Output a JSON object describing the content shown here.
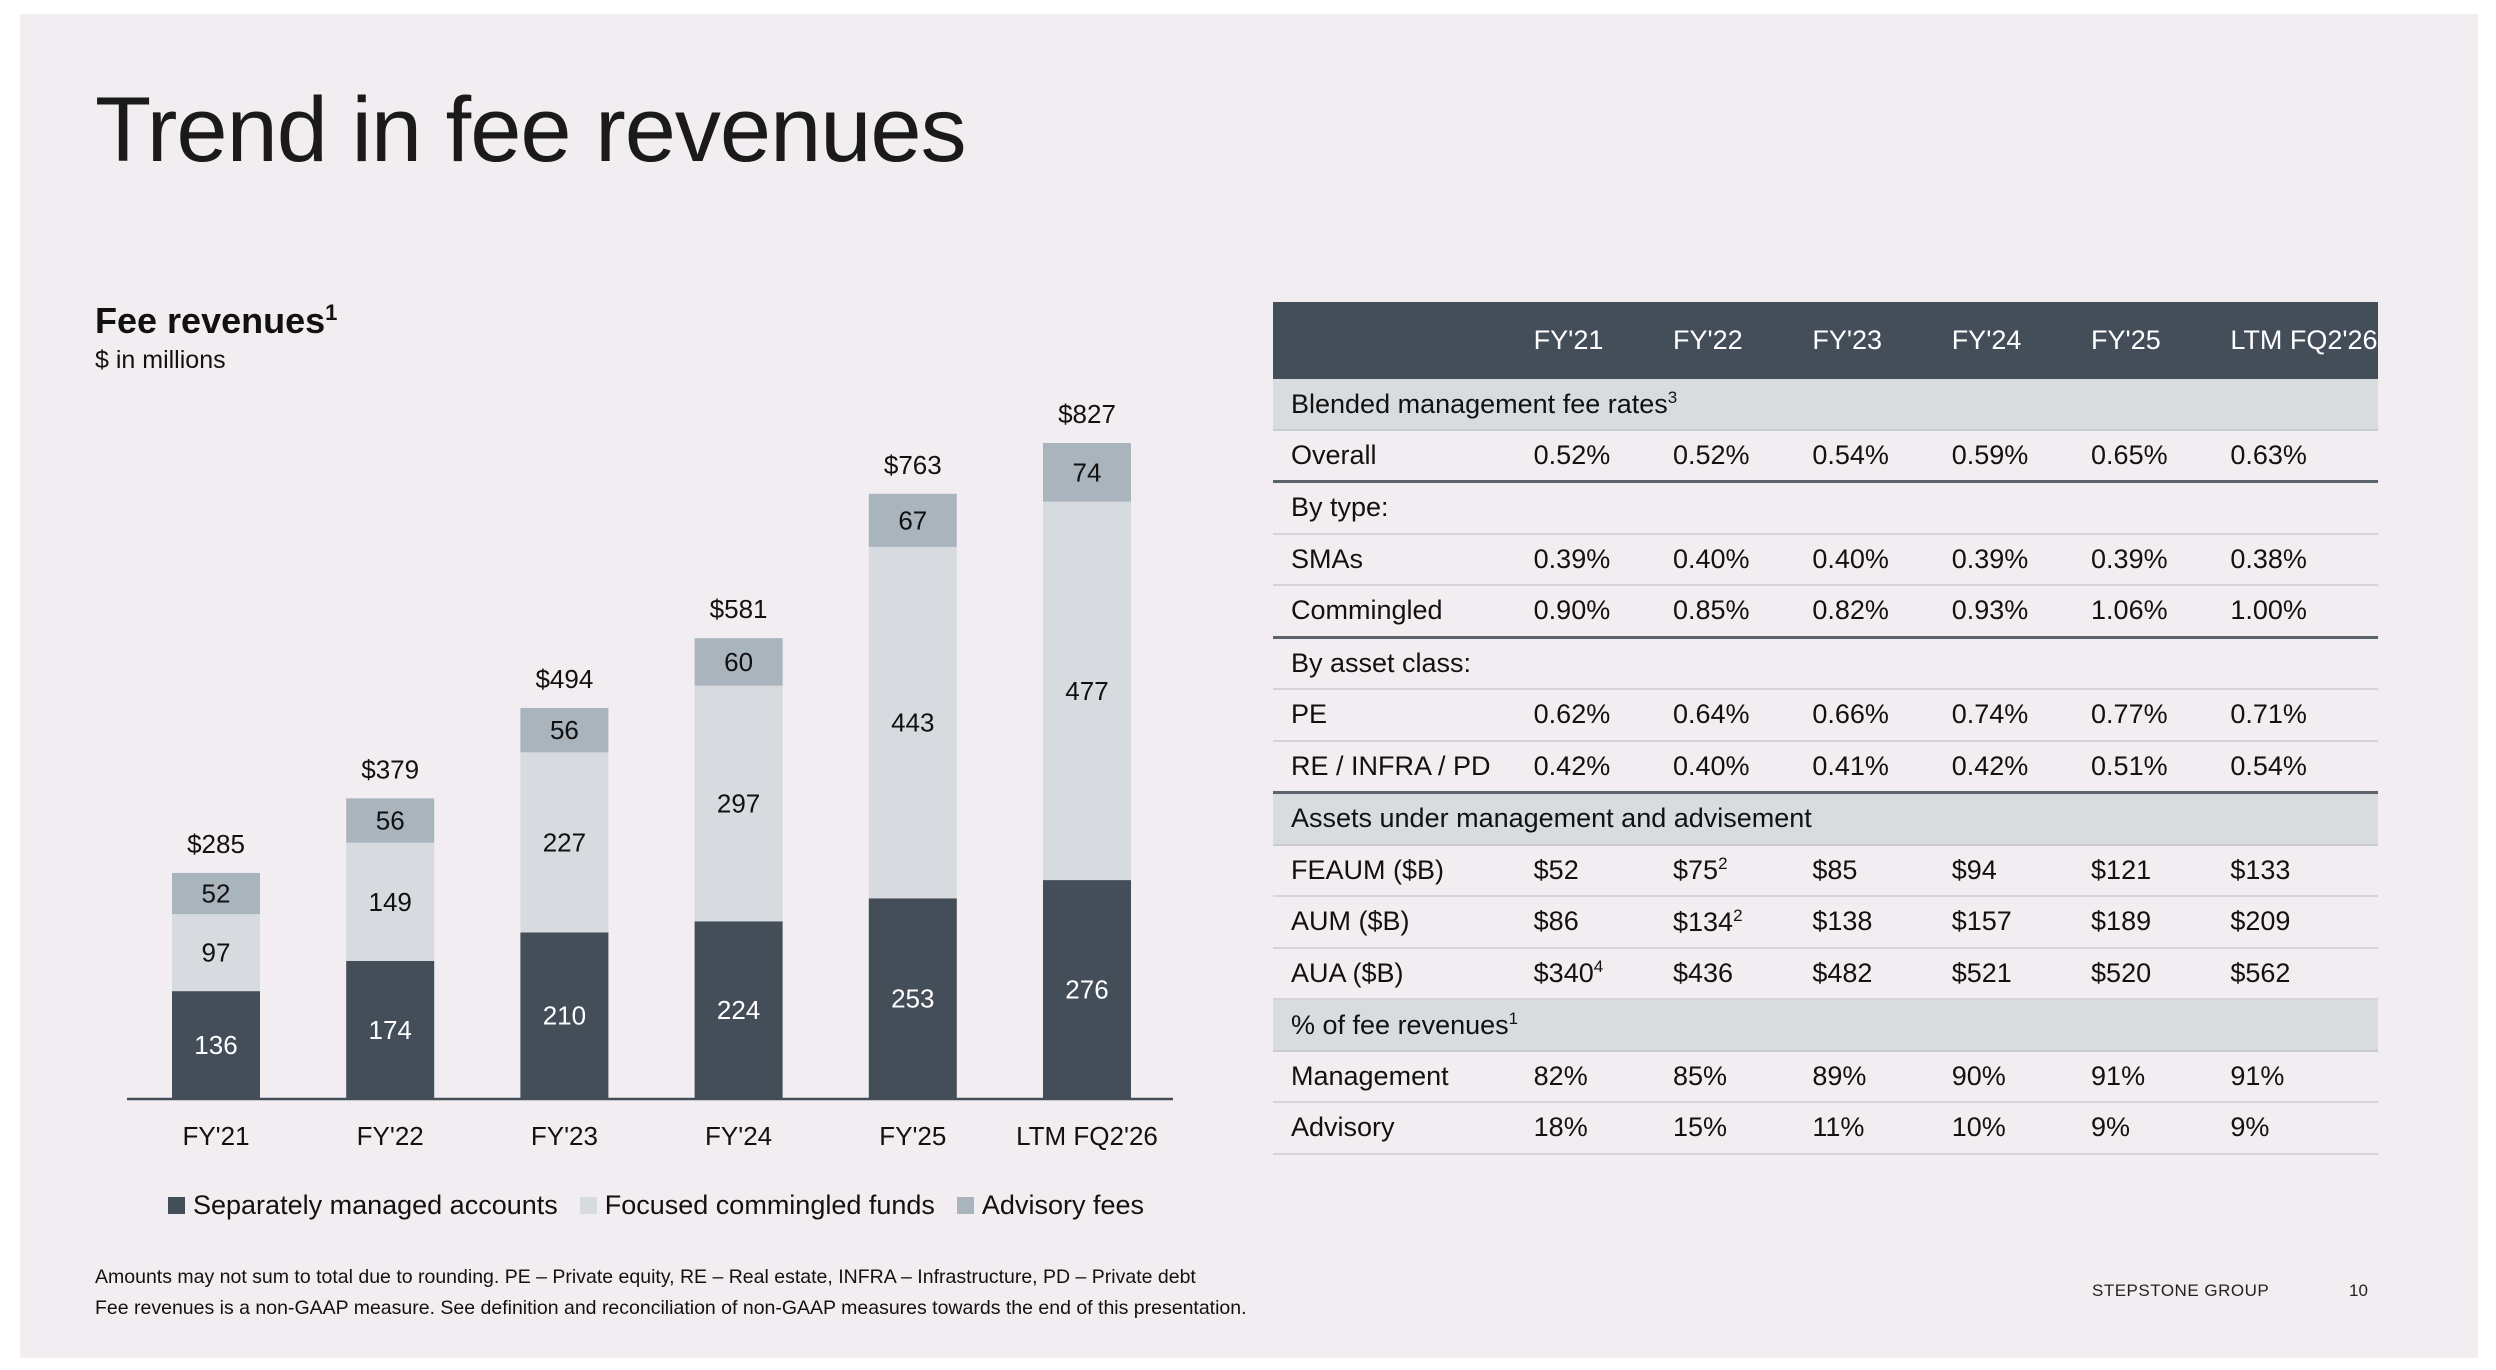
{
  "title": "Trend in fee revenues",
  "chart": {
    "heading": "Fee revenues",
    "heading_sup": "1",
    "subtitle": "$ in millions"
  },
  "chart_data": {
    "type": "bar",
    "stacked": true,
    "categories": [
      "FY'21",
      "FY'22",
      "FY'23",
      "FY'24",
      "FY'25",
      "LTM FQ2'26"
    ],
    "series": [
      {
        "name": "Separately managed accounts",
        "values": [
          136,
          174,
          210,
          224,
          253,
          276
        ],
        "color": "#434e59",
        "label_color": "#ffffff"
      },
      {
        "name": "Focused commingled funds",
        "values": [
          97,
          149,
          227,
          297,
          443,
          477
        ],
        "color": "#d7dbdf",
        "label_color": "#111111"
      },
      {
        "name": "Advisory fees",
        "values": [
          52,
          56,
          56,
          60,
          67,
          74
        ],
        "color": "#aab4bd",
        "label_color": "#111111"
      }
    ],
    "totals": [
      "$285",
      "$379",
      "$494",
      "$581",
      "$763",
      "$827"
    ],
    "ylim": [
      0,
      827
    ],
    "title": "Fee revenues",
    "ylabel": "$ in millions",
    "xlabel": "",
    "legend_position": "bottom"
  },
  "table": {
    "headers": [
      "",
      "FY'21",
      "FY'22",
      "FY'23",
      "FY'24",
      "FY'25",
      "LTM FQ2'26"
    ],
    "rows": [
      {
        "kind": "section",
        "label": "Blended management fee rates",
        "sup": "3"
      },
      {
        "kind": "data",
        "label": "Overall",
        "cells": [
          "0.52%",
          "0.52%",
          "0.54%",
          "0.59%",
          "0.65%",
          "0.63%"
        ],
        "rule": true
      },
      {
        "kind": "plain-section",
        "label": "By type:"
      },
      {
        "kind": "data",
        "label": "SMAs",
        "cells": [
          "0.39%",
          "0.40%",
          "0.40%",
          "0.39%",
          "0.39%",
          "0.38%"
        ]
      },
      {
        "kind": "data",
        "label": "Commingled",
        "cells": [
          "0.90%",
          "0.85%",
          "0.82%",
          "0.93%",
          "1.06%",
          "1.00%"
        ],
        "rule": true
      },
      {
        "kind": "plain-section",
        "label": "By asset class:"
      },
      {
        "kind": "data",
        "label": "PE",
        "cells": [
          "0.62%",
          "0.64%",
          "0.66%",
          "0.74%",
          "0.77%",
          "0.71%"
        ]
      },
      {
        "kind": "data",
        "label": "RE / INFRA / PD",
        "cells": [
          "0.42%",
          "0.40%",
          "0.41%",
          "0.42%",
          "0.51%",
          "0.54%"
        ],
        "rule": true
      },
      {
        "kind": "section",
        "label": "Assets under management and advisement",
        "sup": ""
      },
      {
        "kind": "data",
        "label": "FEAUM ($B)",
        "cells": [
          "$52",
          "$75",
          "$85",
          "$94",
          "$121",
          "$133"
        ],
        "sups": [
          "",
          "2",
          "",
          "",
          "",
          ""
        ]
      },
      {
        "kind": "data",
        "label": "AUM ($B)",
        "cells": [
          "$86",
          "$134",
          "$138",
          "$157",
          "$189",
          "$209"
        ],
        "sups": [
          "",
          "2",
          "",
          "",
          "",
          ""
        ]
      },
      {
        "kind": "data",
        "label": "AUA ($B)",
        "cells": [
          "$340",
          "$436",
          "$482",
          "$521",
          "$520",
          "$562"
        ],
        "sups": [
          "4",
          "",
          "",
          "",
          "",
          ""
        ]
      },
      {
        "kind": "section",
        "label": "% of fee revenues",
        "sup": "1"
      },
      {
        "kind": "data",
        "label": "Management",
        "cells": [
          "82%",
          "85%",
          "89%",
          "90%",
          "91%",
          "91%"
        ]
      },
      {
        "kind": "data",
        "label": "Advisory",
        "cells": [
          "18%",
          "15%",
          "11%",
          "10%",
          "9%",
          "9%"
        ]
      }
    ]
  },
  "legend": [
    "Separately managed accounts",
    "Focused commingled funds",
    "Advisory fees"
  ],
  "footnotes": [
    "Amounts may not sum to total due to rounding. PE – Private equity, RE – Real estate, INFRA – Infrastructure, PD – Private debt",
    "Fee revenues is a non-GAAP measure. See definition and reconciliation of non-GAAP measures towards the end of this presentation."
  ],
  "footer": {
    "brand": "STEPSTONE GROUP",
    "page": "10"
  }
}
